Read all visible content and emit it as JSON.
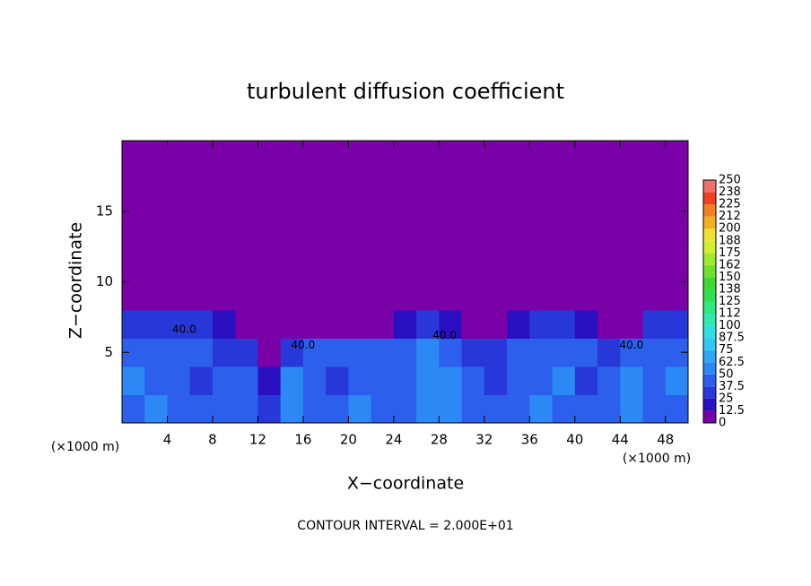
{
  "chart_data": {
    "type": "contour",
    "title": "turbulent diffusion coefficient",
    "x_label": "X−coordinate",
    "y_label": "Z−coordinate",
    "x_unit": "(×1000 m)",
    "y_unit": "(×1000 m)",
    "footnote": "CONTOUR INTERVAL = 2.000E+01",
    "xlim": [
      0,
      50
    ],
    "ylim": [
      0,
      20
    ],
    "xticks": [
      4,
      8,
      12,
      16,
      20,
      24,
      28,
      32,
      36,
      40,
      44,
      48
    ],
    "yticks": [
      5,
      10,
      15
    ],
    "field": {
      "x_edges": [
        0,
        2,
        4,
        6,
        8,
        10,
        12,
        14,
        16,
        18,
        20,
        22,
        24,
        26,
        28,
        30,
        32,
        34,
        36,
        38,
        40,
        42,
        44,
        46,
        48,
        50
      ],
      "z_edges": [
        0,
        2,
        4,
        6,
        8,
        10,
        12,
        14,
        16,
        18,
        20
      ],
      "values": [
        [
          45,
          50,
          40,
          45,
          40,
          45,
          30,
          60,
          45,
          40,
          50,
          45,
          40,
          50,
          55,
          45,
          40,
          45,
          50,
          45,
          40,
          45,
          60,
          45,
          40
        ],
        [
          50,
          45,
          40,
          35,
          45,
          40,
          20,
          50,
          45,
          35,
          45,
          40,
          45,
          55,
          50,
          40,
          35,
          40,
          45,
          50,
          35,
          40,
          55,
          45,
          50
        ],
        [
          40,
          45,
          45,
          40,
          35,
          30,
          10,
          35,
          40,
          45,
          40,
          40,
          45,
          50,
          45,
          35,
          30,
          40,
          45,
          40,
          40,
          35,
          45,
          40,
          45
        ],
        [
          25,
          30,
          25,
          30,
          20,
          0,
          0,
          0,
          0,
          10,
          0,
          0,
          20,
          25,
          15,
          0,
          0,
          15,
          25,
          25,
          20,
          0,
          0,
          25,
          25
        ],
        [
          0,
          0,
          0,
          0,
          0,
          0,
          0,
          0,
          0,
          0,
          0,
          0,
          0,
          0,
          0,
          0,
          0,
          0,
          0,
          0,
          0,
          0,
          0,
          0,
          0
        ],
        [
          0,
          0,
          0,
          0,
          0,
          0,
          0,
          0,
          0,
          0,
          0,
          0,
          0,
          0,
          0,
          0,
          0,
          0,
          0,
          0,
          0,
          0,
          0,
          0,
          0
        ],
        [
          0,
          0,
          0,
          0,
          0,
          0,
          0,
          0,
          0,
          0,
          0,
          0,
          0,
          0,
          0,
          0,
          0,
          0,
          0,
          0,
          0,
          0,
          0,
          0,
          0
        ],
        [
          0,
          0,
          0,
          0,
          0,
          0,
          0,
          0,
          0,
          0,
          0,
          0,
          0,
          0,
          0,
          0,
          0,
          0,
          0,
          0,
          0,
          0,
          0,
          0,
          0
        ],
        [
          0,
          0,
          0,
          0,
          0,
          0,
          0,
          0,
          0,
          0,
          0,
          0,
          0,
          0,
          0,
          0,
          0,
          0,
          0,
          0,
          0,
          0,
          0,
          0,
          0
        ],
        [
          0,
          0,
          0,
          0,
          0,
          0,
          0,
          0,
          0,
          0,
          0,
          0,
          0,
          0,
          0,
          0,
          0,
          0,
          0,
          0,
          0,
          0,
          0,
          0,
          0
        ]
      ]
    },
    "contour_labels": [
      {
        "text": "40.0",
        "x": 5.5,
        "z": 6.6
      },
      {
        "text": "40.0",
        "x": 16,
        "z": 5.5
      },
      {
        "text": "40.0",
        "x": 28.5,
        "z": 6.2
      },
      {
        "text": "40.0",
        "x": 45,
        "z": 5.5
      }
    ],
    "colorbar": {
      "levels": [
        0,
        12.5,
        25,
        37.5,
        50,
        62.5,
        75,
        87.5,
        100,
        112,
        125,
        138,
        150,
        162,
        175,
        188,
        200,
        212,
        225,
        238,
        250
      ],
      "colors": [
        "#7a00a8",
        "#2a10c0",
        "#2838d8",
        "#2c60ec",
        "#2c88f4",
        "#2ca8f4",
        "#30c8f0",
        "#30e0e0",
        "#30e8b0",
        "#30e880",
        "#30e050",
        "#40d830",
        "#70e030",
        "#a0e830",
        "#d0f030",
        "#f0e030",
        "#f0b020",
        "#f08020",
        "#f04020",
        "#f07070"
      ]
    }
  }
}
